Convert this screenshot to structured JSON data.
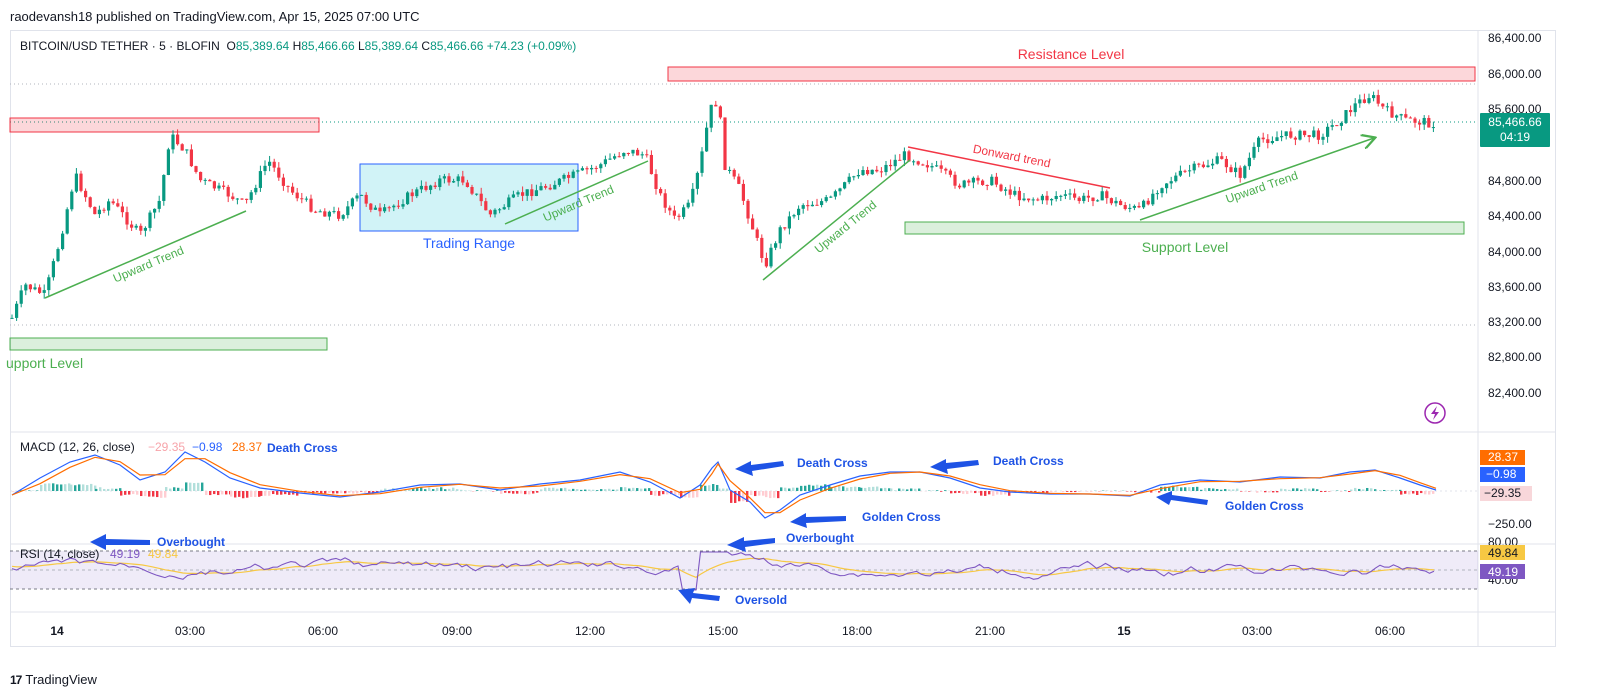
{
  "header": {
    "publisher": "raodevansh18 published on TradingView.com, Apr 15, 2025 07:00 UTC"
  },
  "symbol": {
    "name": "BITCOIN/USD TETHER · 5 · BLOFIN",
    "o_label": "O",
    "o": "85,389.64",
    "h_label": "H",
    "h": "85,466.66",
    "l_label": "L",
    "l": "85,389.64",
    "c_label": "C",
    "c": "85,466.66",
    "change": "+74.23 (+0.09%)"
  },
  "price_axis": [
    "86,400.00",
    "86,000.00",
    "85,600.00",
    "84,800.00",
    "84,400.00",
    "84,000.00",
    "83,600.00",
    "83,200.00",
    "82,800.00",
    "82,400.00"
  ],
  "last_price": {
    "value": "85,466.66",
    "countdown": "04:19"
  },
  "time_axis": [
    "14",
    "03:00",
    "06:00",
    "09:00",
    "12:00",
    "15:00",
    "18:00",
    "21:00",
    "15",
    "03:00",
    "06:00"
  ],
  "annotations": {
    "resistance": "Resistance Level",
    "support_left": "upport Level",
    "support_right": "Support Level",
    "trading_range": "Trading Range",
    "upward_trend": "Upward Trend",
    "downward_trend": "Donward trend"
  },
  "macd": {
    "label": "MACD (12, 26, close)",
    "v1": "−29.35",
    "v2": "−0.98",
    "v3": "28.37",
    "badge_top": "28.37",
    "badge_mid": "−0.98",
    "badge_low": "−29.35",
    "axis_250": "−250.00",
    "death_cross": "Death Cross",
    "golden_cross": "Golden Cross",
    "overbought": "Overbought"
  },
  "rsi": {
    "label": "RSI (14, close)",
    "v1": "49.19",
    "v2": "49.84",
    "badge_top": "49.84",
    "badge_mid": "49.19",
    "axis_80": "80.00",
    "axis_40": "40.00",
    "overbought": "Overbought",
    "oversold": "Oversold"
  },
  "footer": {
    "brand": "TradingView",
    "mark": "17"
  },
  "colors": {
    "up": "#089981",
    "down": "#f23645",
    "macd": "#2962ff",
    "signal": "#ff6d00",
    "rsi": "#7e57c2",
    "rsi_ma": "#f7c843",
    "annot_blue": "#1e53e5"
  }
}
